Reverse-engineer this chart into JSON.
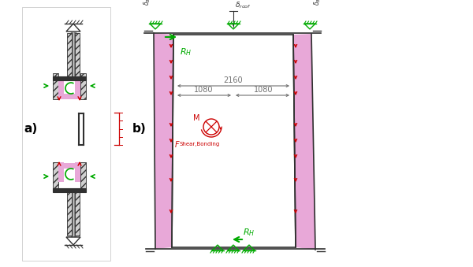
{
  "fig_width": 6.0,
  "fig_height": 3.39,
  "dpi": 100,
  "bg_color": "#ffffff",
  "pink": "#e8a8d8",
  "dark": "#303030",
  "hatch_color": "#a0a0a0",
  "green": "#00aa00",
  "red": "#cc0000",
  "dim_color": "#707070",
  "label_a": "a)",
  "label_b": "b)",
  "dim_2160": "2160",
  "dim_1080_left": "1080",
  "dim_1080_right": "1080"
}
